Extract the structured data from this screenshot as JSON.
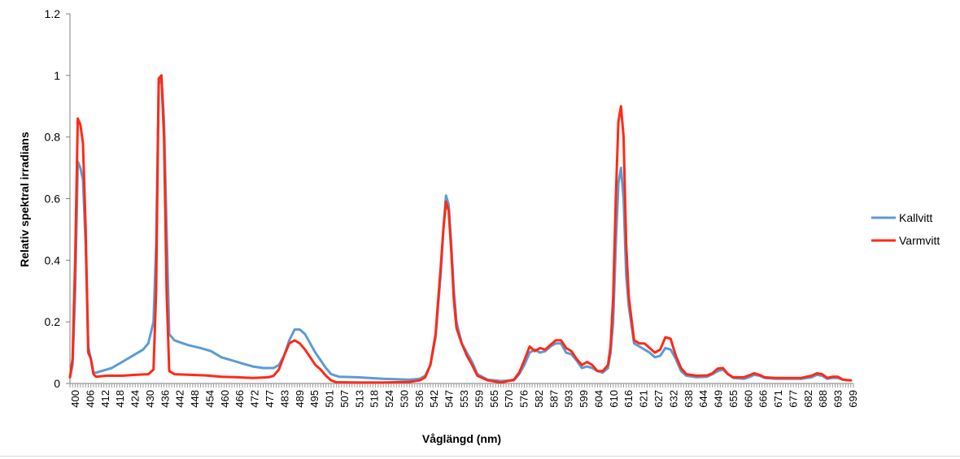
{
  "chart_data": {
    "type": "line",
    "title": "",
    "xlabel": "Våglängd (nm)",
    "ylabel": "Relativ spektral irradians",
    "xlim": [
      400,
      700
    ],
    "ylim": [
      0,
      1.2
    ],
    "yticks": [
      0,
      0.2,
      0.4,
      0.6,
      0.8,
      1,
      1.2
    ],
    "ytick_labels": [
      "0",
      "0.2",
      "0.4",
      "0.6",
      "0.8",
      "1",
      "1.2"
    ],
    "xtick_labels": [
      "400",
      "406",
      "412",
      "418",
      "424",
      "430",
      "436",
      "442",
      "448",
      "454",
      "460",
      "466",
      "472",
      "477",
      "483",
      "489",
      "495",
      "501",
      "507",
      "513",
      "518",
      "524",
      "530",
      "536",
      "542",
      "547",
      "553",
      "559",
      "565",
      "570",
      "576",
      "582",
      "587",
      "593",
      "599",
      "604",
      "610",
      "616",
      "621",
      "627",
      "632",
      "638",
      "644",
      "649",
      "655",
      "660",
      "666",
      "671",
      "677",
      "682",
      "688",
      "693",
      "699"
    ],
    "grid": false,
    "legend_position": "right",
    "series": [
      {
        "name": "Kallvitt",
        "color": "#5b9bd5",
        "points": [
          [
            400,
            0.02
          ],
          [
            401,
            0.06
          ],
          [
            402,
            0.3
          ],
          [
            403,
            0.72
          ],
          [
            404,
            0.7
          ],
          [
            405,
            0.66
          ],
          [
            406,
            0.45
          ],
          [
            407,
            0.12
          ],
          [
            408,
            0.08
          ],
          [
            409,
            0.035
          ],
          [
            410,
            0.035
          ],
          [
            412,
            0.04
          ],
          [
            416,
            0.05
          ],
          [
            420,
            0.07
          ],
          [
            424,
            0.09
          ],
          [
            428,
            0.11
          ],
          [
            430,
            0.13
          ],
          [
            432,
            0.2
          ],
          [
            433,
            0.45
          ],
          [
            434,
            0.97
          ],
          [
            435,
            1.0
          ],
          [
            436,
            0.85
          ],
          [
            437,
            0.5
          ],
          [
            438,
            0.16
          ],
          [
            440,
            0.14
          ],
          [
            445,
            0.125
          ],
          [
            450,
            0.115
          ],
          [
            454,
            0.105
          ],
          [
            458,
            0.085
          ],
          [
            462,
            0.075
          ],
          [
            466,
            0.065
          ],
          [
            470,
            0.055
          ],
          [
            474,
            0.05
          ],
          [
            478,
            0.05
          ],
          [
            480,
            0.06
          ],
          [
            482,
            0.09
          ],
          [
            484,
            0.14
          ],
          [
            486,
            0.175
          ],
          [
            488,
            0.175
          ],
          [
            490,
            0.16
          ],
          [
            492,
            0.13
          ],
          [
            494,
            0.1
          ],
          [
            496,
            0.075
          ],
          [
            498,
            0.05
          ],
          [
            500,
            0.03
          ],
          [
            503,
            0.022
          ],
          [
            510,
            0.02
          ],
          [
            520,
            0.015
          ],
          [
            530,
            0.012
          ],
          [
            534,
            0.015
          ],
          [
            536,
            0.025
          ],
          [
            538,
            0.06
          ],
          [
            540,
            0.15
          ],
          [
            542,
            0.36
          ],
          [
            543,
            0.5
          ],
          [
            544,
            0.61
          ],
          [
            545,
            0.58
          ],
          [
            546,
            0.45
          ],
          [
            547,
            0.3
          ],
          [
            548,
            0.2
          ],
          [
            550,
            0.13
          ],
          [
            552,
            0.1
          ],
          [
            554,
            0.07
          ],
          [
            556,
            0.03
          ],
          [
            560,
            0.012
          ],
          [
            565,
            0.008
          ],
          [
            570,
            0.01
          ],
          [
            572,
            0.03
          ],
          [
            574,
            0.06
          ],
          [
            576,
            0.1
          ],
          [
            578,
            0.11
          ],
          [
            580,
            0.1
          ],
          [
            582,
            0.105
          ],
          [
            584,
            0.12
          ],
          [
            586,
            0.13
          ],
          [
            588,
            0.13
          ],
          [
            590,
            0.1
          ],
          [
            592,
            0.095
          ],
          [
            594,
            0.075
          ],
          [
            596,
            0.05
          ],
          [
            598,
            0.055
          ],
          [
            600,
            0.05
          ],
          [
            602,
            0.04
          ],
          [
            604,
            0.035
          ],
          [
            606,
            0.05
          ],
          [
            607,
            0.1
          ],
          [
            608,
            0.2
          ],
          [
            609,
            0.45
          ],
          [
            610,
            0.65
          ],
          [
            611,
            0.7
          ],
          [
            612,
            0.6
          ],
          [
            613,
            0.35
          ],
          [
            614,
            0.25
          ],
          [
            616,
            0.13
          ],
          [
            618,
            0.12
          ],
          [
            620,
            0.11
          ],
          [
            622,
            0.1
          ],
          [
            624,
            0.085
          ],
          [
            626,
            0.09
          ],
          [
            628,
            0.115
          ],
          [
            630,
            0.11
          ],
          [
            632,
            0.08
          ],
          [
            634,
            0.04
          ],
          [
            636,
            0.025
          ],
          [
            640,
            0.02
          ],
          [
            644,
            0.022
          ],
          [
            646,
            0.03
          ],
          [
            648,
            0.04
          ],
          [
            650,
            0.045
          ],
          [
            652,
            0.03
          ],
          [
            654,
            0.018
          ],
          [
            658,
            0.015
          ],
          [
            660,
            0.02
          ],
          [
            662,
            0.028
          ],
          [
            664,
            0.025
          ],
          [
            666,
            0.018
          ],
          [
            670,
            0.015
          ],
          [
            680,
            0.015
          ],
          [
            684,
            0.02
          ],
          [
            686,
            0.028
          ],
          [
            688,
            0.025
          ],
          [
            690,
            0.015
          ],
          [
            692,
            0.018
          ],
          [
            694,
            0.018
          ],
          [
            696,
            0.012
          ],
          [
            699,
            0.01
          ]
        ]
      },
      {
        "name": "Varmvitt",
        "color": "#ff2a17",
        "points": [
          [
            400,
            0.02
          ],
          [
            401,
            0.08
          ],
          [
            402,
            0.4
          ],
          [
            403,
            0.86
          ],
          [
            404,
            0.84
          ],
          [
            405,
            0.78
          ],
          [
            406,
            0.5
          ],
          [
            407,
            0.1
          ],
          [
            408,
            0.08
          ],
          [
            409,
            0.03
          ],
          [
            410,
            0.022
          ],
          [
            414,
            0.025
          ],
          [
            420,
            0.025
          ],
          [
            425,
            0.028
          ],
          [
            430,
            0.03
          ],
          [
            432,
            0.045
          ],
          [
            433,
            0.3
          ],
          [
            434,
            0.99
          ],
          [
            435,
            1.0
          ],
          [
            436,
            0.8
          ],
          [
            437,
            0.3
          ],
          [
            438,
            0.04
          ],
          [
            440,
            0.03
          ],
          [
            446,
            0.028
          ],
          [
            452,
            0.026
          ],
          [
            458,
            0.022
          ],
          [
            464,
            0.02
          ],
          [
            470,
            0.018
          ],
          [
            476,
            0.02
          ],
          [
            478,
            0.025
          ],
          [
            480,
            0.045
          ],
          [
            482,
            0.09
          ],
          [
            484,
            0.13
          ],
          [
            486,
            0.14
          ],
          [
            488,
            0.13
          ],
          [
            490,
            0.11
          ],
          [
            492,
            0.085
          ],
          [
            494,
            0.06
          ],
          [
            496,
            0.045
          ],
          [
            498,
            0.025
          ],
          [
            500,
            0.01
          ],
          [
            502,
            0.004
          ],
          [
            510,
            0.003
          ],
          [
            520,
            0.003
          ],
          [
            530,
            0.005
          ],
          [
            534,
            0.01
          ],
          [
            536,
            0.02
          ],
          [
            538,
            0.06
          ],
          [
            540,
            0.16
          ],
          [
            542,
            0.38
          ],
          [
            543,
            0.5
          ],
          [
            544,
            0.59
          ],
          [
            545,
            0.56
          ],
          [
            546,
            0.43
          ],
          [
            547,
            0.27
          ],
          [
            548,
            0.18
          ],
          [
            550,
            0.13
          ],
          [
            552,
            0.09
          ],
          [
            554,
            0.06
          ],
          [
            556,
            0.025
          ],
          [
            560,
            0.01
          ],
          [
            565,
            0.003
          ],
          [
            570,
            0.012
          ],
          [
            572,
            0.035
          ],
          [
            574,
            0.075
          ],
          [
            576,
            0.12
          ],
          [
            578,
            0.105
          ],
          [
            580,
            0.115
          ],
          [
            582,
            0.11
          ],
          [
            584,
            0.125
          ],
          [
            586,
            0.14
          ],
          [
            588,
            0.14
          ],
          [
            590,
            0.115
          ],
          [
            592,
            0.105
          ],
          [
            594,
            0.08
          ],
          [
            596,
            0.06
          ],
          [
            598,
            0.07
          ],
          [
            600,
            0.06
          ],
          [
            602,
            0.04
          ],
          [
            604,
            0.04
          ],
          [
            606,
            0.06
          ],
          [
            607,
            0.12
          ],
          [
            608,
            0.28
          ],
          [
            609,
            0.6
          ],
          [
            610,
            0.85
          ],
          [
            611,
            0.9
          ],
          [
            612,
            0.8
          ],
          [
            613,
            0.45
          ],
          [
            614,
            0.28
          ],
          [
            616,
            0.14
          ],
          [
            618,
            0.13
          ],
          [
            620,
            0.13
          ],
          [
            622,
            0.115
          ],
          [
            624,
            0.1
          ],
          [
            626,
            0.11
          ],
          [
            628,
            0.15
          ],
          [
            630,
            0.145
          ],
          [
            632,
            0.09
          ],
          [
            634,
            0.05
          ],
          [
            636,
            0.03
          ],
          [
            640,
            0.025
          ],
          [
            644,
            0.026
          ],
          [
            646,
            0.033
          ],
          [
            648,
            0.048
          ],
          [
            650,
            0.05
          ],
          [
            652,
            0.03
          ],
          [
            654,
            0.02
          ],
          [
            658,
            0.02
          ],
          [
            660,
            0.026
          ],
          [
            662,
            0.033
          ],
          [
            664,
            0.028
          ],
          [
            666,
            0.02
          ],
          [
            670,
            0.018
          ],
          [
            680,
            0.018
          ],
          [
            684,
            0.025
          ],
          [
            686,
            0.033
          ],
          [
            688,
            0.03
          ],
          [
            690,
            0.018
          ],
          [
            692,
            0.022
          ],
          [
            694,
            0.022
          ],
          [
            696,
            0.012
          ],
          [
            699,
            0.01
          ]
        ]
      }
    ]
  }
}
